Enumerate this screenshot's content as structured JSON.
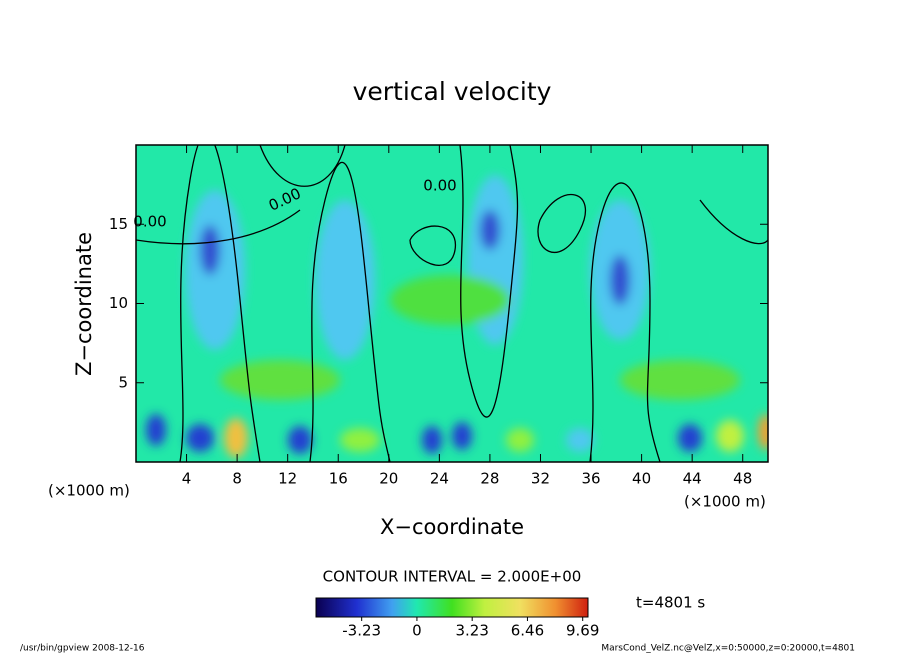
{
  "chart_data": {
    "type": "contour",
    "title": "vertical velocity",
    "x_label": "X−coordinate",
    "y_label": "Z−coordinate",
    "unit_label": "(×1000 m)",
    "xlim": [
      0,
      50
    ],
    "xticks": [
      4,
      8,
      12,
      16,
      20,
      24,
      28,
      32,
      36,
      40,
      44,
      48
    ],
    "ylim": [
      0,
      20
    ],
    "yticks": [
      5,
      10,
      15
    ],
    "contour_interval": "CONTOUR INTERVAL = 2.000E+00",
    "contour_labels": [
      "0.00",
      "0.00",
      "0.00"
    ],
    "colorbar": {
      "lim": [
        -5.9,
        10.0
      ],
      "ticks": [
        -3.23,
        0,
        3.23,
        6.46,
        9.69
      ]
    },
    "time_label": "t=4801 s",
    "footer_left": "/usr/bin/gpview   2008-12-16",
    "footer_right": "MarsCond_VelZ.nc@VelZ,x=0:50000,z=0:20000,t=4801"
  }
}
